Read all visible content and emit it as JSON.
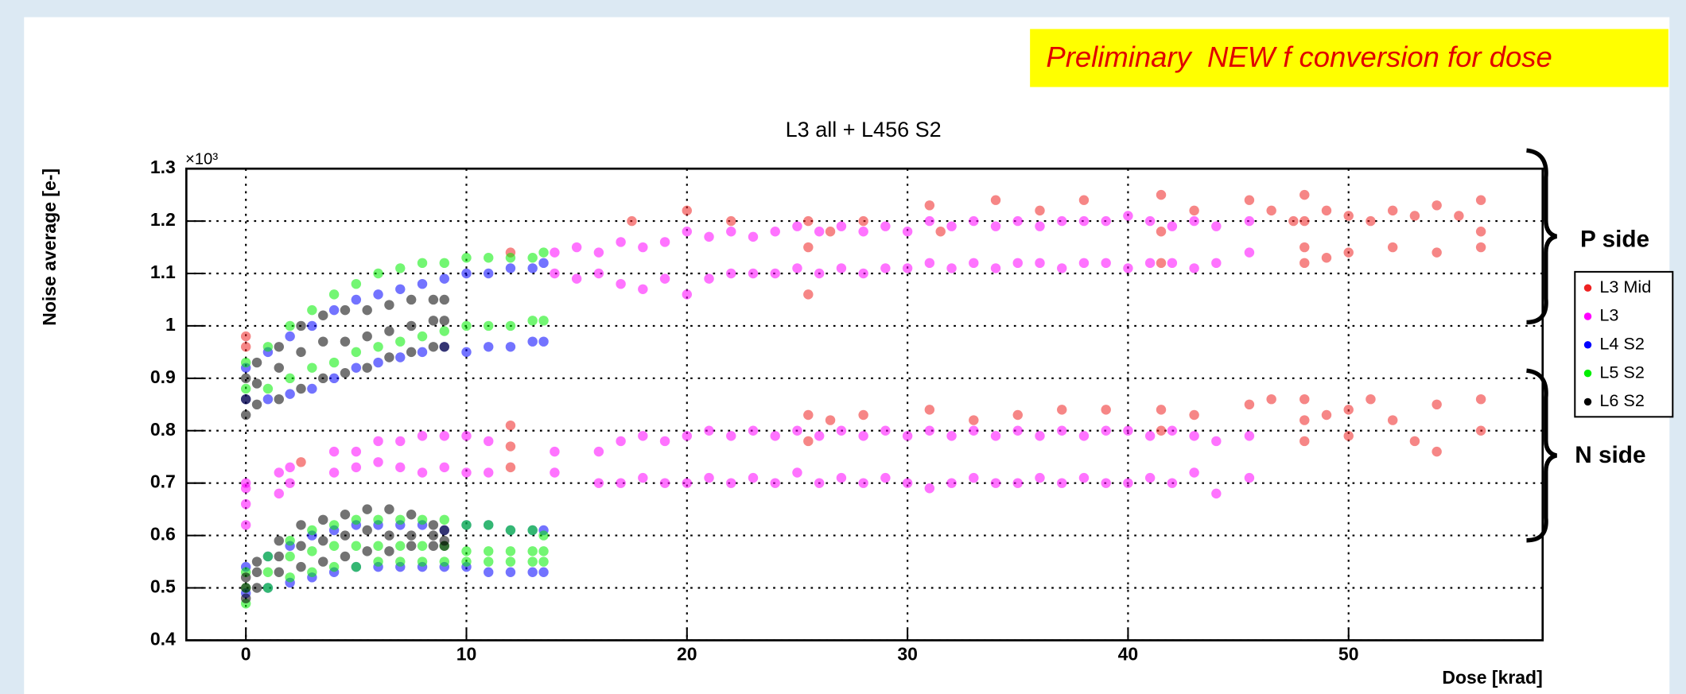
{
  "chart_data": {
    "type": "scatter",
    "title": "L3 all + L456 S2",
    "banner": "Preliminary  NEW f conversion for dose",
    "x_label": "Dose [krad]",
    "y_label": "Noise average [e-]",
    "y_multiplier": "×10³",
    "annotations": [
      "P side",
      "N side"
    ],
    "xlim": [
      -2.7,
      58.8
    ],
    "ylim": [
      0.4,
      1.3
    ],
    "xticks": [
      0,
      10,
      20,
      30,
      40,
      50
    ],
    "yticks": [
      0.4,
      0.5,
      0.6,
      0.7,
      0.8,
      0.9,
      1,
      1.1,
      1.2,
      1.3
    ],
    "grid": true,
    "legend": "right",
    "series": [
      {
        "name": "L3 Mid",
        "color": "#ee2222",
        "x": [
          0,
          0,
          12,
          17.5,
          20,
          22,
          25.5,
          25.5,
          25.5,
          26.5,
          28,
          31,
          31.5,
          34,
          36,
          38,
          41.5,
          41.5,
          41.5,
          43,
          45.5,
          46.5,
          47.5,
          48,
          48,
          48,
          48,
          49,
          49,
          50,
          50,
          51,
          52,
          52,
          53,
          54,
          54,
          55,
          56,
          56,
          56,
          2.5,
          12,
          12,
          12,
          25.5,
          25.5,
          26.5,
          28,
          31,
          33,
          35,
          37,
          39,
          41.5,
          41.5,
          43,
          45.5,
          46.5,
          48,
          48,
          48,
          49,
          50,
          50,
          51,
          52,
          53,
          54,
          54,
          56,
          56
        ],
        "values": [
          0.98,
          0.96,
          1.14,
          1.2,
          1.22,
          1.2,
          1.2,
          1.15,
          1.06,
          1.18,
          1.2,
          1.23,
          1.18,
          1.24,
          1.22,
          1.24,
          1.25,
          1.18,
          1.12,
          1.22,
          1.24,
          1.22,
          1.2,
          1.25,
          1.2,
          1.15,
          1.12,
          1.22,
          1.13,
          1.21,
          1.14,
          1.2,
          1.22,
          1.15,
          1.21,
          1.23,
          1.14,
          1.21,
          1.24,
          1.18,
          1.15,
          0.74,
          0.81,
          0.77,
          0.73,
          0.83,
          0.78,
          0.82,
          0.83,
          0.84,
          0.82,
          0.83,
          0.84,
          0.84,
          0.84,
          0.8,
          0.83,
          0.85,
          0.86,
          0.86,
          0.82,
          0.78,
          0.83,
          0.84,
          0.79,
          0.86,
          0.82,
          0.78,
          0.85,
          0.76,
          0.86,
          0.8
        ]
      },
      {
        "name": "L3",
        "color": "#ff00ff",
        "x": [
          14,
          15,
          16,
          17,
          18,
          19,
          20,
          21,
          22,
          23,
          24,
          25,
          26,
          27,
          28,
          29,
          30,
          31,
          32,
          33,
          34,
          35,
          36,
          37,
          38,
          39,
          40,
          41,
          42,
          43,
          44,
          45.5,
          14,
          15,
          16,
          17,
          18,
          19,
          20,
          21,
          22,
          23,
          24,
          25,
          26,
          27,
          28,
          29,
          30,
          31,
          32,
          33,
          34,
          35,
          36,
          37,
          38,
          39,
          40,
          41,
          42,
          43,
          44,
          45.5,
          0,
          0,
          1.5,
          2,
          4,
          5,
          6,
          7,
          8,
          9,
          10,
          11,
          14,
          16,
          17,
          18,
          19,
          20,
          21,
          22,
          23,
          24,
          25,
          26,
          27,
          28,
          29,
          30,
          31,
          32,
          33,
          34,
          35,
          36,
          37,
          38,
          39,
          40,
          41,
          42,
          43,
          44,
          45.5,
          0,
          0,
          1.5,
          2,
          4,
          5,
          6,
          7,
          8,
          9,
          10,
          11,
          14,
          16,
          17,
          18,
          19,
          20,
          21,
          22,
          23,
          24,
          25,
          26,
          27,
          28,
          29,
          30,
          31,
          32,
          33,
          34,
          35,
          36,
          37,
          38,
          39,
          40,
          41,
          42,
          43,
          44,
          45.5
        ],
        "values": [
          1.14,
          1.15,
          1.14,
          1.16,
          1.15,
          1.16,
          1.18,
          1.17,
          1.18,
          1.17,
          1.18,
          1.19,
          1.18,
          1.19,
          1.18,
          1.19,
          1.18,
          1.2,
          1.19,
          1.2,
          1.19,
          1.2,
          1.19,
          1.2,
          1.2,
          1.2,
          1.21,
          1.2,
          1.19,
          1.2,
          1.19,
          1.2,
          1.1,
          1.09,
          1.1,
          1.08,
          1.07,
          1.09,
          1.06,
          1.09,
          1.1,
          1.1,
          1.1,
          1.11,
          1.1,
          1.11,
          1.1,
          1.11,
          1.11,
          1.12,
          1.11,
          1.12,
          1.11,
          1.12,
          1.12,
          1.11,
          1.12,
          1.12,
          1.11,
          1.12,
          1.12,
          1.11,
          1.12,
          1.14,
          0.7,
          0.69,
          0.72,
          0.73,
          0.76,
          0.76,
          0.78,
          0.78,
          0.79,
          0.79,
          0.79,
          0.78,
          0.76,
          0.76,
          0.78,
          0.79,
          0.78,
          0.79,
          0.8,
          0.79,
          0.8,
          0.79,
          0.8,
          0.79,
          0.8,
          0.79,
          0.8,
          0.79,
          0.8,
          0.79,
          0.8,
          0.79,
          0.8,
          0.79,
          0.8,
          0.79,
          0.8,
          0.8,
          0.79,
          0.8,
          0.79,
          0.78,
          0.79,
          0.66,
          0.62,
          0.68,
          0.7,
          0.72,
          0.73,
          0.74,
          0.73,
          0.72,
          0.73,
          0.72,
          0.72,
          0.72,
          0.7,
          0.7,
          0.71,
          0.7,
          0.7,
          0.71,
          0.7,
          0.71,
          0.7,
          0.72,
          0.7,
          0.71,
          0.7,
          0.71,
          0.7,
          0.69,
          0.7,
          0.71,
          0.7,
          0.7,
          0.71,
          0.7,
          0.71,
          0.7,
          0.7,
          0.71,
          0.7,
          0.72,
          0.68,
          0.71
        ]
      },
      {
        "name": "L4 S2",
        "color": "#0000ff",
        "x": [
          0,
          1,
          2,
          3,
          4,
          5,
          6,
          7,
          8,
          9,
          10,
          11,
          12,
          13,
          13.5,
          0,
          1,
          2,
          3,
          4,
          5,
          6,
          7,
          8,
          9,
          10,
          11,
          12,
          13,
          13.5,
          0,
          1,
          2,
          3,
          4,
          5,
          6,
          7,
          8,
          9,
          10,
          11,
          12,
          13,
          13.5,
          0,
          1,
          2,
          3,
          4,
          5,
          6,
          7,
          8,
          9,
          10,
          11,
          12,
          13,
          13.5
        ],
        "values": [
          0.86,
          0.86,
          0.87,
          0.88,
          0.9,
          0.92,
          0.93,
          0.94,
          0.95,
          0.96,
          0.95,
          0.96,
          0.96,
          0.97,
          0.97,
          0.92,
          0.95,
          0.98,
          1.0,
          1.03,
          1.05,
          1.06,
          1.07,
          1.08,
          1.09,
          1.1,
          1.1,
          1.11,
          1.11,
          1.12,
          0.49,
          0.5,
          0.51,
          0.52,
          0.53,
          0.54,
          0.54,
          0.54,
          0.54,
          0.54,
          0.54,
          0.53,
          0.53,
          0.53,
          0.53,
          0.54,
          0.56,
          0.58,
          0.6,
          0.61,
          0.62,
          0.62,
          0.62,
          0.62,
          0.61,
          0.62,
          0.62,
          0.61,
          0.61,
          0.61
        ]
      },
      {
        "name": "L5 S2",
        "color": "#00ee00",
        "x": [
          0,
          1,
          2,
          3,
          4,
          5,
          6,
          7,
          8,
          9,
          10,
          11,
          12,
          13,
          13.5,
          0,
          1,
          2,
          3,
          4,
          5,
          6,
          7,
          8,
          9,
          10,
          11,
          12,
          13,
          13.5,
          0,
          1,
          2,
          3,
          4,
          5,
          6,
          7,
          8,
          9,
          10,
          11,
          12,
          13,
          13.5,
          0,
          1,
          2,
          3,
          4,
          5,
          6,
          7,
          8,
          9,
          10,
          11,
          12,
          13,
          13.5,
          0,
          1,
          2,
          3,
          4,
          5,
          6,
          7,
          8,
          9,
          10,
          11,
          12,
          13,
          13.5
        ],
        "values": [
          0.88,
          0.88,
          0.9,
          0.92,
          0.93,
          0.95,
          0.96,
          0.97,
          0.98,
          0.99,
          1.0,
          1.0,
          1.0,
          1.01,
          1.01,
          0.93,
          0.96,
          1.0,
          1.03,
          1.06,
          1.08,
          1.1,
          1.11,
          1.12,
          1.12,
          1.13,
          1.13,
          1.13,
          1.13,
          1.14,
          0.47,
          0.5,
          0.52,
          0.53,
          0.54,
          0.54,
          0.55,
          0.55,
          0.55,
          0.55,
          0.55,
          0.55,
          0.55,
          0.55,
          0.55,
          0.53,
          0.56,
          0.59,
          0.61,
          0.62,
          0.63,
          0.63,
          0.63,
          0.63,
          0.63,
          0.62,
          0.62,
          0.61,
          0.61,
          0.6,
          0.5,
          0.53,
          0.56,
          0.57,
          0.58,
          0.58,
          0.58,
          0.58,
          0.58,
          0.58,
          0.57,
          0.57,
          0.57,
          0.57,
          0.57
        ]
      },
      {
        "name": "L6 S2",
        "color": "#000000",
        "x": [
          0,
          0.5,
          1.5,
          2.5,
          3.5,
          4.5,
          5.5,
          6.5,
          7.5,
          8.5,
          9,
          0,
          0.5,
          1.5,
          2.5,
          3.5,
          4.5,
          5.5,
          6.5,
          7.5,
          8.5,
          9,
          0,
          0.5,
          1.5,
          2.5,
          3.5,
          4.5,
          5.5,
          6.5,
          7.5,
          8.5,
          9,
          0,
          0.5,
          1.5,
          2.5,
          3.5,
          4.5,
          5.5,
          6.5,
          7.5,
          8.5,
          9,
          0,
          0.5,
          1.5,
          2.5,
          3.5,
          4.5,
          5.5,
          6.5,
          7.5,
          8.5,
          9,
          0,
          0.5,
          1.5,
          2.5,
          3.5,
          4.5,
          5.5,
          6.5,
          7.5,
          8.5,
          9
        ],
        "values": [
          0.83,
          0.85,
          0.86,
          0.88,
          0.9,
          0.91,
          0.92,
          0.94,
          0.95,
          0.96,
          0.96,
          0.9,
          0.93,
          0.96,
          1.0,
          1.02,
          1.03,
          1.03,
          1.04,
          1.05,
          1.05,
          1.05,
          0.86,
          0.89,
          0.92,
          0.95,
          0.97,
          0.97,
          0.98,
          0.99,
          1.0,
          1.01,
          1.01,
          0.48,
          0.5,
          0.53,
          0.54,
          0.55,
          0.56,
          0.57,
          0.57,
          0.58,
          0.58,
          0.58,
          0.52,
          0.55,
          0.59,
          0.62,
          0.63,
          0.64,
          0.65,
          0.65,
          0.64,
          0.62,
          0.61,
          0.5,
          0.53,
          0.56,
          0.58,
          0.59,
          0.6,
          0.61,
          0.6,
          0.6,
          0.6,
          0.59
        ]
      }
    ]
  }
}
